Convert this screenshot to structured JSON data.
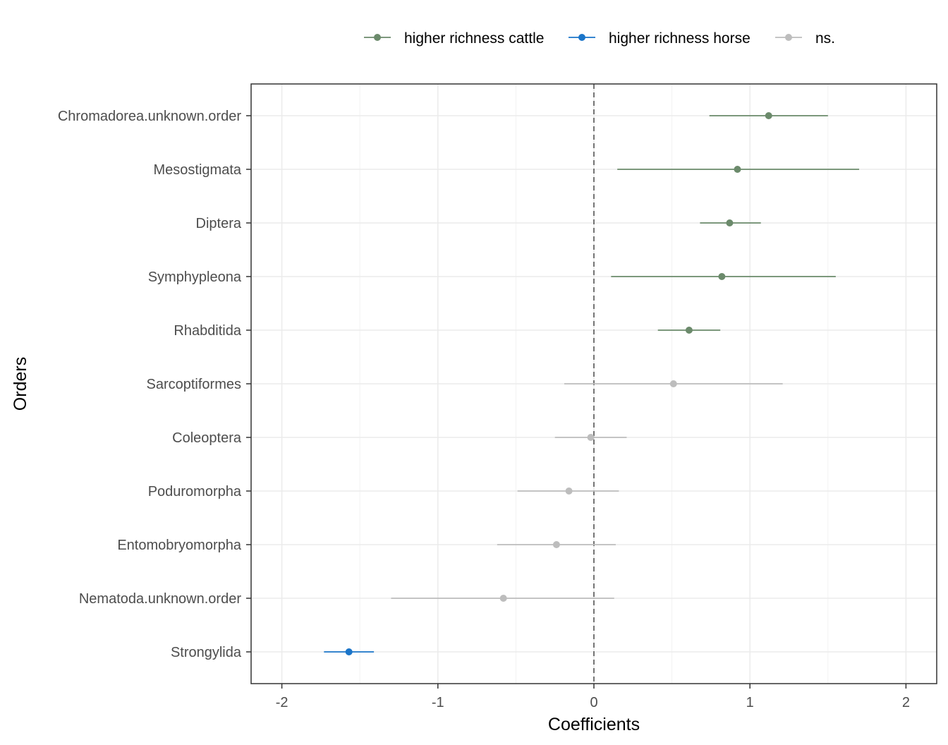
{
  "chart_data": {
    "type": "scatter",
    "subtype": "coefficient-plot-with-error-bars",
    "xlabel": "Coefficients",
    "ylabel": "Orders",
    "xlim": [
      -2.2,
      2.2
    ],
    "x_ticks": [
      -2,
      -1,
      0,
      1,
      2
    ],
    "x_tick_labels": [
      "-2",
      "-1",
      "0",
      "1",
      "2"
    ],
    "grid": true,
    "reference_line": {
      "x": 0,
      "style": "dashed"
    },
    "legend": {
      "position": "top",
      "entries": [
        {
          "key": "cattle",
          "label": "higher richness cattle",
          "color": "#6b8a6b"
        },
        {
          "key": "horse",
          "label": "higher richness horse",
          "color": "#1b75c9"
        },
        {
          "key": "ns",
          "label": "ns.",
          "color": "#bdbdbd"
        }
      ]
    },
    "categories": [
      "Chromadorea.unknown.order",
      "Mesostigmata",
      "Diptera",
      "Symphypleona",
      "Rhabditida",
      "Sarcoptiformes",
      "Coleoptera",
      "Poduromorpha",
      "Entomobryomorpha",
      "Nematoda.unknown.order",
      "Strongylida"
    ],
    "points": [
      {
        "order": "Chromadorea.unknown.order",
        "estimate": 1.12,
        "low": 0.74,
        "high": 1.5,
        "group": "cattle"
      },
      {
        "order": "Mesostigmata",
        "estimate": 0.92,
        "low": 0.15,
        "high": 1.7,
        "group": "cattle"
      },
      {
        "order": "Diptera",
        "estimate": 0.87,
        "low": 0.68,
        "high": 1.07,
        "group": "cattle"
      },
      {
        "order": "Symphypleona",
        "estimate": 0.82,
        "low": 0.11,
        "high": 1.55,
        "group": "cattle"
      },
      {
        "order": "Rhabditida",
        "estimate": 0.61,
        "low": 0.41,
        "high": 0.81,
        "group": "cattle"
      },
      {
        "order": "Sarcoptiformes",
        "estimate": 0.51,
        "low": -0.19,
        "high": 1.21,
        "group": "ns"
      },
      {
        "order": "Coleoptera",
        "estimate": -0.02,
        "low": -0.25,
        "high": 0.21,
        "group": "ns"
      },
      {
        "order": "Poduromorpha",
        "estimate": -0.16,
        "low": -0.49,
        "high": 0.16,
        "group": "ns"
      },
      {
        "order": "Entomobryomorpha",
        "estimate": -0.24,
        "low": -0.62,
        "high": 0.14,
        "group": "ns"
      },
      {
        "order": "Nematoda.unknown.order",
        "estimate": -0.58,
        "low": -1.3,
        "high": 0.13,
        "group": "ns"
      },
      {
        "order": "Strongylida",
        "estimate": -1.57,
        "low": -1.73,
        "high": -1.41,
        "group": "horse"
      }
    ]
  }
}
